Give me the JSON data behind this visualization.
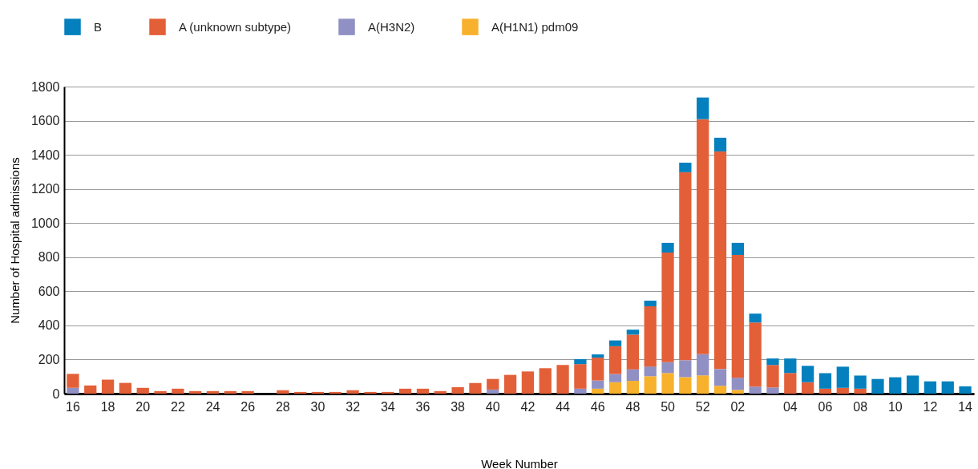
{
  "chart_data": {
    "type": "bar",
    "stacked": true,
    "xlabel": "Week Number",
    "ylabel": "Number of Hospital admissions",
    "categories": [
      "16",
      null,
      "18",
      null,
      "20",
      null,
      "22",
      null,
      "24",
      null,
      "26",
      null,
      "28",
      null,
      "30",
      null,
      "32",
      null,
      "34",
      null,
      "36",
      null,
      "38",
      null,
      "40",
      null,
      "42",
      null,
      "44",
      null,
      "46",
      null,
      "48",
      null,
      "50",
      null,
      "52",
      null,
      "02",
      null,
      null,
      "04",
      null,
      "06",
      null,
      "08",
      null,
      "10",
      null,
      "12",
      null,
      "14"
    ],
    "series": [
      {
        "name": "A(H1N1) pdm09",
        "color": "#f8b12c",
        "values": [
          0,
          0,
          0,
          0,
          0,
          0,
          0,
          0,
          0,
          0,
          0,
          0,
          0,
          0,
          0,
          0,
          0,
          0,
          0,
          0,
          0,
          0,
          0,
          0,
          0,
          0,
          0,
          0,
          0,
          0,
          29,
          67,
          75,
          102,
          121,
          97,
          107,
          46,
          22,
          0,
          0,
          0,
          0,
          0,
          0,
          0,
          0,
          0,
          0,
          0,
          0,
          0
        ]
      },
      {
        "name": "A(H3N2)",
        "color": "#9090c4",
        "values": [
          34,
          0,
          0,
          0,
          0,
          0,
          0,
          0,
          0,
          0,
          0,
          0,
          0,
          0,
          0,
          0,
          0,
          0,
          0,
          0,
          0,
          0,
          0,
          0,
          24,
          0,
          0,
          0,
          0,
          29,
          48,
          48,
          67,
          57,
          63,
          99,
          124,
          98,
          71,
          41,
          36,
          0,
          0,
          0,
          0,
          0,
          0,
          0,
          0,
          0,
          0,
          0
        ]
      },
      {
        "name": "A (unknown subtype)",
        "color": "#e35f38",
        "values": [
          82,
          48,
          82,
          63,
          34,
          15,
          29,
          15,
          15,
          15,
          15,
          0,
          20,
          10,
          10,
          10,
          20,
          10,
          10,
          29,
          29,
          15,
          38,
          62,
          62,
          110,
          130,
          149,
          168,
          144,
          134,
          163,
          204,
          353,
          643,
          1102,
          1378,
          1276,
          720,
          376,
          132,
          121,
          67,
          29,
          34,
          29,
          0,
          0,
          0,
          0,
          0,
          0
        ]
      },
      {
        "name": "B",
        "color": "#0380bd",
        "values": [
          0,
          0,
          0,
          0,
          0,
          0,
          0,
          0,
          0,
          0,
          0,
          0,
          0,
          0,
          0,
          0,
          0,
          0,
          0,
          0,
          0,
          0,
          0,
          0,
          0,
          0,
          0,
          0,
          0,
          29,
          19,
          34,
          29,
          33,
          57,
          56,
          127,
          80,
          71,
          52,
          38,
          85,
          96,
          91,
          124,
          77,
          86,
          96,
          106,
          72,
          72,
          43
        ]
      }
    ],
    "ylim": [
      0,
      1800
    ],
    "yticks": [
      0,
      200,
      400,
      600,
      800,
      1000,
      1200,
      1400,
      1600,
      1800
    ],
    "grid": "y",
    "legend": "top left"
  }
}
